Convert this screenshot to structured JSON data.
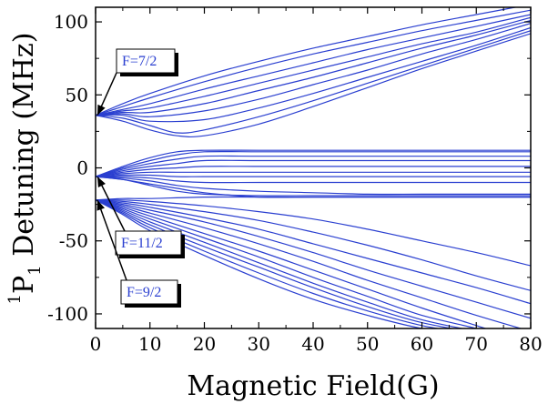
{
  "chart_data": {
    "type": "line",
    "xlabel": "Magnetic Field(G)",
    "ylabel_superscript": "1",
    "ylabel_main": "P",
    "ylabel_subscript": "1",
    "ylabel_rest": " Detuning (MHz)",
    "xlim": [
      0,
      80
    ],
    "ylim": [
      -110,
      110
    ],
    "x_ticks": [
      0,
      10,
      20,
      30,
      40,
      50,
      60,
      70,
      80
    ],
    "x_tick_labels": [
      "0",
      "10",
      "20",
      "30",
      "40",
      "50",
      "60",
      "70",
      "80"
    ],
    "y_ticks": [
      -100,
      -50,
      0,
      50,
      100
    ],
    "y_tick_labels": [
      "-100",
      "-50",
      "0",
      "50",
      "100"
    ],
    "grid": false,
    "line_color": "#2a3fd0",
    "annotations": [
      {
        "text": "F=7/2",
        "target": [
          0,
          36
        ]
      },
      {
        "text": "F=11/2",
        "target": [
          0,
          -6
        ]
      },
      {
        "text": "F=9/2",
        "target": [
          0,
          -22
        ]
      }
    ],
    "series": [
      {
        "x": [
          0,
          5,
          10,
          20,
          30,
          40,
          50,
          60,
          70,
          80
        ],
        "y": [
          36,
          44,
          51,
          63,
          73,
          82,
          90,
          98,
          105,
          112
        ]
      },
      {
        "x": [
          0,
          5,
          10,
          20,
          30,
          40,
          50,
          60,
          70,
          80
        ],
        "y": [
          36,
          42,
          48,
          59,
          69,
          78,
          86,
          94,
          101,
          108
        ]
      },
      {
        "x": [
          0,
          5,
          10,
          20,
          30,
          40,
          50,
          60,
          70,
          80
        ],
        "y": [
          36,
          40,
          44,
          54,
          63,
          72,
          81,
          89,
          97,
          105
        ]
      },
      {
        "x": [
          0,
          5,
          10,
          20,
          30,
          40,
          50,
          60,
          70,
          80
        ],
        "y": [
          36,
          39,
          41,
          49,
          58,
          67,
          76,
          85,
          93,
          103
        ]
      },
      {
        "x": [
          0,
          5,
          10,
          20,
          30,
          40,
          50,
          60,
          70,
          80
        ],
        "y": [
          36,
          38,
          38,
          44,
          53,
          62,
          72,
          82,
          91,
          101
        ]
      },
      {
        "x": [
          0,
          5,
          10,
          20,
          30,
          40,
          50,
          60,
          70,
          80
        ],
        "y": [
          36,
          37,
          35,
          39,
          47,
          57,
          67,
          78,
          88,
          99
        ]
      },
      {
        "x": [
          0,
          5,
          10,
          20,
          30,
          40,
          50,
          60,
          70,
          80
        ],
        "y": [
          36,
          36,
          32,
          33,
          41,
          51,
          62,
          73,
          84,
          96
        ]
      },
      {
        "x": [
          0,
          5,
          10,
          15,
          20,
          30,
          40,
          50,
          60,
          70,
          80
        ],
        "y": [
          36,
          34,
          29,
          24,
          26,
          35,
          46,
          58,
          70,
          82,
          94
        ]
      },
      {
        "x": [
          0,
          5,
          10,
          15,
          20,
          30,
          40,
          50,
          60,
          70,
          80
        ],
        "y": [
          36,
          32,
          26,
          22,
          22,
          30,
          42,
          55,
          68,
          80,
          92
        ]
      },
      {
        "x": [
          0,
          5,
          10,
          15,
          20,
          30,
          40,
          50,
          60,
          70,
          80
        ],
        "y": [
          -6,
          1,
          7,
          11,
          12,
          12,
          12,
          12,
          12,
          12,
          12
        ]
      },
      {
        "x": [
          0,
          5,
          10,
          15,
          20,
          30,
          40,
          50,
          60,
          70,
          80
        ],
        "y": [
          -6,
          0,
          5,
          9,
          11,
          11,
          11,
          11,
          11,
          11,
          11
        ]
      },
      {
        "x": [
          0,
          5,
          10,
          15,
          20,
          30,
          40,
          50,
          60,
          70,
          80
        ],
        "y": [
          -6,
          -1,
          3,
          6,
          8,
          8,
          8,
          8,
          8,
          8,
          8
        ]
      },
      {
        "x": [
          0,
          5,
          10,
          15,
          20,
          30,
          40,
          50,
          60,
          70,
          80
        ],
        "y": [
          -6,
          -2,
          1,
          3,
          5,
          5,
          5,
          5,
          5,
          5,
          5
        ]
      },
      {
        "x": [
          0,
          5,
          10,
          15,
          20,
          30,
          40,
          50,
          60,
          70,
          80
        ],
        "y": [
          -6,
          -3,
          -1,
          0,
          1,
          1,
          1,
          1,
          1,
          1,
          1
        ]
      },
      {
        "x": [
          0,
          5,
          10,
          15,
          20,
          30,
          40,
          50,
          60,
          70,
          80
        ],
        "y": [
          -6,
          -4,
          -3,
          -3,
          -3,
          -3,
          -3,
          -3,
          -3,
          -3,
          -3
        ]
      },
      {
        "x": [
          0,
          5,
          10,
          15,
          20,
          30,
          40,
          50,
          60,
          70,
          80
        ],
        "y": [
          -6,
          -5,
          -5,
          -6,
          -6,
          -6,
          -6,
          -6,
          -6,
          -6,
          -6
        ]
      },
      {
        "x": [
          0,
          5,
          10,
          15,
          20,
          30,
          40,
          50,
          60,
          70,
          80
        ],
        "y": [
          -6,
          -6,
          -7,
          -9,
          -10,
          -10,
          -10,
          -10,
          -10,
          -10,
          -10
        ]
      },
      {
        "x": [
          0,
          5,
          10,
          15,
          20,
          30,
          40,
          50,
          60,
          70,
          80
        ],
        "y": [
          -6,
          -7,
          -9,
          -12,
          -14,
          -16,
          -17,
          -18,
          -18,
          -18,
          -18
        ]
      },
      {
        "x": [
          0,
          5,
          10,
          15,
          20,
          30,
          40,
          50,
          60,
          70,
          80
        ],
        "y": [
          -6,
          -8,
          -11,
          -14,
          -17,
          -20,
          -20,
          -20,
          -20,
          -20,
          -20
        ]
      },
      {
        "x": [
          0,
          5,
          10,
          15,
          20,
          30,
          40,
          50,
          60,
          70,
          80
        ],
        "y": [
          -6,
          -8,
          -12,
          -16,
          -18,
          -19,
          -19,
          -19,
          -19,
          -19,
          -19
        ]
      },
      {
        "x": [
          0,
          5,
          10,
          20,
          30,
          40,
          50,
          60,
          70,
          80
        ],
        "y": [
          -22,
          -21,
          -21,
          -20,
          -20,
          -20,
          -20,
          -20,
          -20,
          -20
        ]
      },
      {
        "x": [
          0,
          5,
          10,
          20,
          30,
          40,
          50,
          60,
          70,
          80
        ],
        "y": [
          -22,
          -22,
          -23,
          -26,
          -30,
          -35,
          -42,
          -50,
          -58,
          -67
        ]
      },
      {
        "x": [
          0,
          5,
          10,
          20,
          30,
          40,
          50,
          60,
          70,
          80
        ],
        "y": [
          -22,
          -23,
          -25,
          -30,
          -36,
          -44,
          -53,
          -63,
          -74,
          -84
        ]
      },
      {
        "x": [
          0,
          5,
          10,
          20,
          30,
          40,
          50,
          60,
          70,
          80
        ],
        "y": [
          -22,
          -24,
          -27,
          -34,
          -42,
          -52,
          -62,
          -72,
          -82,
          -93
        ]
      },
      {
        "x": [
          0,
          5,
          10,
          20,
          30,
          40,
          50,
          60,
          70,
          80
        ],
        "y": [
          -22,
          -25,
          -29,
          -37,
          -47,
          -58,
          -70,
          -81,
          -92,
          -103
        ]
      },
      {
        "x": [
          0,
          5,
          10,
          20,
          30,
          40,
          50,
          60,
          70,
          80
        ],
        "y": [
          -22,
          -26,
          -31,
          -41,
          -52,
          -64,
          -77,
          -89,
          -101,
          -112
        ]
      },
      {
        "x": [
          0,
          5,
          10,
          20,
          30,
          40,
          50,
          60,
          70,
          76
        ],
        "y": [
          -22,
          -27,
          -33,
          -45,
          -57,
          -70,
          -83,
          -96,
          -108,
          -115
        ]
      },
      {
        "x": [
          0,
          5,
          10,
          20,
          30,
          40,
          50,
          60,
          70,
          74
        ],
        "y": [
          -22,
          -28,
          -35,
          -48,
          -61,
          -75,
          -88,
          -101,
          -110,
          -115
        ]
      },
      {
        "x": [
          0,
          5,
          10,
          20,
          30,
          40,
          50,
          60,
          70,
          73
        ],
        "y": [
          -22,
          -29,
          -37,
          -51,
          -65,
          -79,
          -92,
          -104,
          -112,
          -115
        ]
      },
      {
        "x": [
          0,
          5,
          10,
          20,
          30,
          40,
          50,
          60,
          70,
          72
        ],
        "y": [
          -22,
          -30,
          -39,
          -54,
          -68,
          -82,
          -95,
          -106,
          -113,
          -115
        ]
      },
      {
        "x": [
          0,
          5,
          10,
          20,
          30,
          40,
          50,
          60,
          70,
          71
        ],
        "y": [
          -22,
          -31,
          -41,
          -57,
          -72,
          -86,
          -98,
          -108,
          -114,
          -115
        ]
      },
      {
        "x": [
          0,
          5,
          10,
          20,
          30,
          40,
          50,
          60,
          70
        ],
        "y": [
          -22,
          -32,
          -43,
          -60,
          -76,
          -90,
          -101,
          -110,
          -115
        ]
      }
    ]
  }
}
